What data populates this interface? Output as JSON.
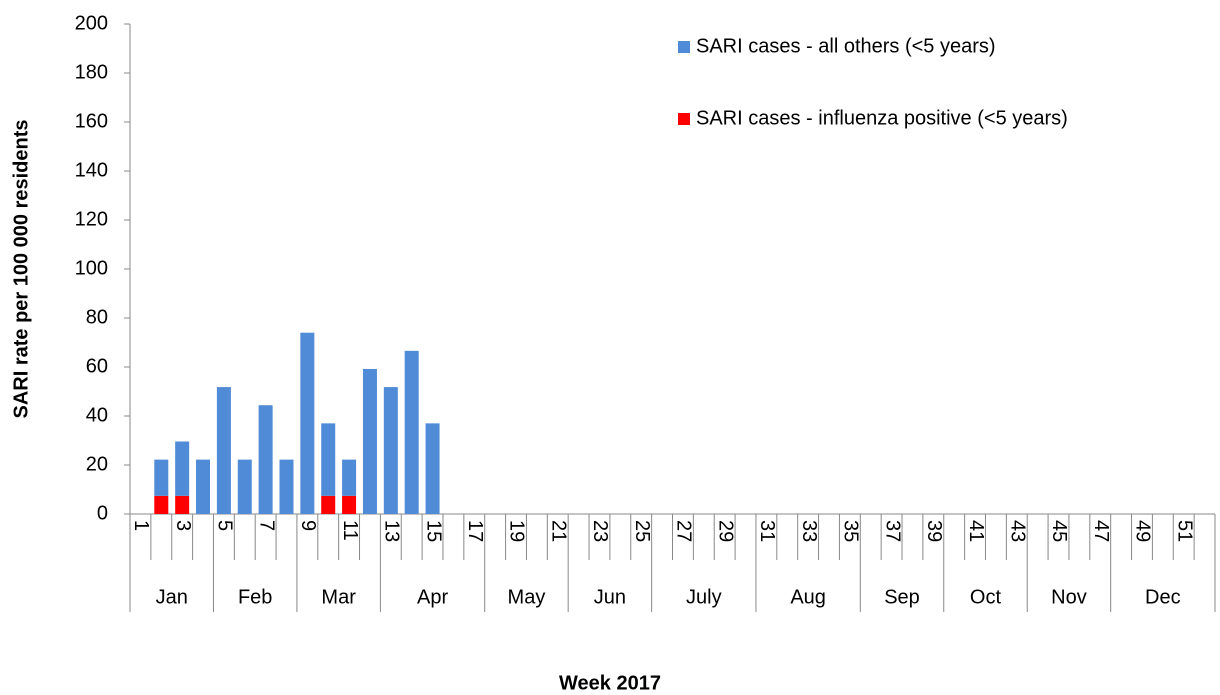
{
  "chart_data": {
    "type": "bar",
    "stacked": true,
    "y_label": "SARI rate per 100 000 residents",
    "x_label": "Week 2017",
    "categories": [
      "1",
      null,
      "3",
      null,
      "5",
      null,
      "7",
      null,
      "9",
      null,
      "11",
      null,
      "13",
      null,
      "15",
      null,
      "17",
      null,
      "19",
      null,
      "21",
      null,
      "23",
      null,
      "25",
      null,
      "27",
      null,
      "29",
      null,
      "31",
      null,
      "33",
      null,
      "35",
      null,
      "37",
      null,
      "39",
      null,
      "41",
      null,
      "43",
      null,
      "45",
      null,
      "47",
      null,
      "49",
      null,
      "51",
      null
    ],
    "x_groups": [
      {
        "label": "Jan",
        "span": 4
      },
      {
        "label": "Feb",
        "span": 4
      },
      {
        "label": "Mar",
        "span": 4
      },
      {
        "label": "Apr",
        "span": 5
      },
      {
        "label": "May",
        "span": 4
      },
      {
        "label": "Jun",
        "span": 4
      },
      {
        "label": "July",
        "span": 5
      },
      {
        "label": "Aug",
        "span": 5
      },
      {
        "label": "Sep",
        "span": 4
      },
      {
        "label": "Oct",
        "span": 4
      },
      {
        "label": "Nov",
        "span": 4
      },
      {
        "label": "Dec",
        "span": 5
      }
    ],
    "series": [
      {
        "name": "SARI cases - influenza positive (<5 years)",
        "color": "#ff0000",
        "values": [
          0,
          7.4,
          7.4,
          0,
          0,
          0,
          0,
          0,
          0,
          7.4,
          7.4,
          0,
          0,
          0,
          0,
          null,
          null,
          null,
          null,
          null,
          null,
          null,
          null,
          null,
          null,
          null,
          null,
          null,
          null,
          null,
          null,
          null,
          null,
          null,
          null,
          null,
          null,
          null,
          null,
          null,
          null,
          null,
          null,
          null,
          null,
          null,
          null,
          null,
          null,
          null,
          null,
          null
        ]
      },
      {
        "name": "SARI cases - all others (<5 years)",
        "color": "#4f8bd6",
        "values": [
          0,
          14.8,
          22.2,
          22.2,
          51.8,
          22.2,
          44.4,
          22.2,
          74,
          29.6,
          14.8,
          59.2,
          51.8,
          66.6,
          37,
          null,
          null,
          null,
          null,
          null,
          null,
          null,
          null,
          null,
          null,
          null,
          null,
          null,
          null,
          null,
          null,
          null,
          null,
          null,
          null,
          null,
          null,
          null,
          null,
          null,
          null,
          null,
          null,
          null,
          null,
          null,
          null,
          null,
          null,
          null,
          null,
          null
        ]
      }
    ],
    "ylim": [
      0,
      200
    ],
    "yticks": [
      0,
      20,
      40,
      60,
      80,
      100,
      120,
      140,
      160,
      180,
      200
    ],
    "legend_position": "top-right"
  }
}
